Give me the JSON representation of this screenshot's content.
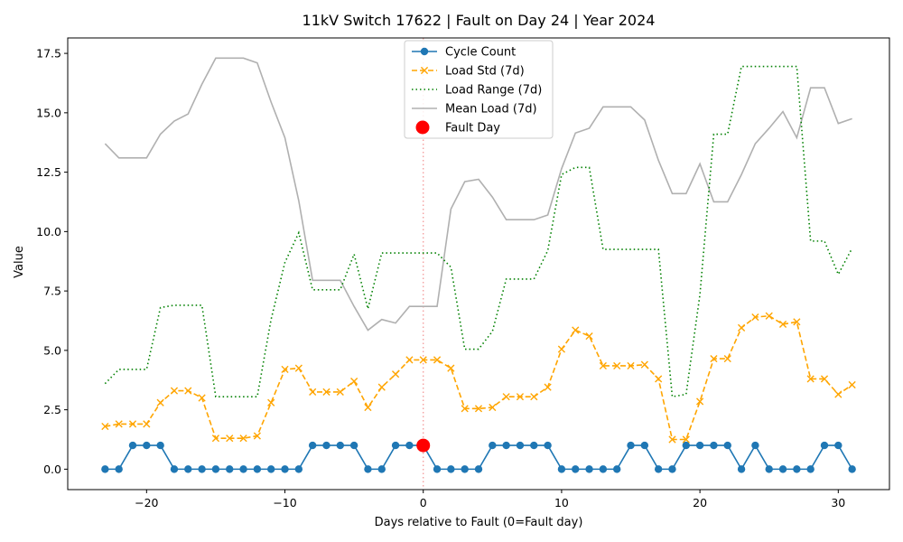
{
  "chart_data": {
    "type": "line",
    "title": "11kV Switch 17622 | Fault on Day 24 | Year 2024",
    "xlabel": "Days relative to Fault (0=Fault day)",
    "ylabel": "Value",
    "xlim": [
      -25.7,
      33.7
    ],
    "ylim": [
      -0.86,
      18.15
    ],
    "xticks": [
      -20,
      -10,
      0,
      10,
      20,
      30
    ],
    "xtick_labels": [
      "−20",
      "−10",
      "0",
      "10",
      "20",
      "30"
    ],
    "yticks": [
      0,
      2.5,
      5,
      7.5,
      10,
      12.5,
      15,
      17.5
    ],
    "ytick_labels": [
      "0.0",
      "2.5",
      "5.0",
      "7.5",
      "10.0",
      "12.5",
      "15.0",
      "17.5"
    ],
    "grid": false,
    "legend_position": "upper-center",
    "x": [
      -23,
      -22,
      -21,
      -20,
      -19,
      -18,
      -17,
      -16,
      -15,
      -14,
      -13,
      -12,
      -11,
      -10,
      -9,
      -8,
      -7,
      -6,
      -5,
      -4,
      -3,
      -2,
      -1,
      0,
      1,
      2,
      3,
      4,
      5,
      6,
      7,
      8,
      9,
      10,
      11,
      12,
      13,
      14,
      15,
      16,
      17,
      18,
      19,
      20,
      21,
      22,
      23,
      24,
      25,
      26,
      27,
      28,
      29,
      30,
      31
    ],
    "series": [
      {
        "name": "Cycle Count",
        "color": "#1f77b4",
        "style": "solid",
        "marker": "circle",
        "values": [
          0,
          0,
          1,
          1,
          1,
          0,
          0,
          0,
          0,
          0,
          0,
          0,
          0,
          0,
          0,
          1,
          1,
          1,
          1,
          0,
          0,
          1,
          1,
          1,
          0,
          0,
          0,
          0,
          1,
          1,
          1,
          1,
          1,
          0,
          0,
          0,
          0,
          0,
          1,
          1,
          0,
          0,
          1,
          1,
          1,
          1,
          0,
          1,
          0,
          0,
          0,
          0,
          1,
          1,
          0
        ]
      },
      {
        "name": "Load Std (7d)",
        "color": "#ffa500",
        "style": "dashed",
        "marker": "x",
        "values": [
          1.8,
          1.9,
          1.9,
          1.9,
          2.8,
          3.3,
          3.3,
          3.0,
          1.3,
          1.3,
          1.3,
          1.4,
          2.8,
          4.2,
          4.25,
          3.25,
          3.25,
          3.25,
          3.7,
          2.6,
          3.45,
          4.0,
          4.6,
          4.6,
          4.6,
          4.25,
          2.55,
          2.55,
          2.6,
          3.05,
          3.05,
          3.05,
          3.45,
          5.05,
          5.85,
          5.6,
          4.35,
          4.35,
          4.35,
          4.4,
          3.8,
          1.25,
          1.25,
          2.85,
          4.65,
          4.65,
          5.95,
          6.4,
          6.45,
          6.1,
          6.2,
          3.8,
          3.8,
          3.15,
          3.55
        ]
      },
      {
        "name": "Load Range (7d)",
        "color": "#008000",
        "style": "dotted",
        "marker": "none",
        "values": [
          3.6,
          4.2,
          4.2,
          4.2,
          6.8,
          6.9,
          6.9,
          6.9,
          3.05,
          3.05,
          3.05,
          3.05,
          6.3,
          8.7,
          9.95,
          7.55,
          7.55,
          7.55,
          9.05,
          6.75,
          9.1,
          9.1,
          9.1,
          9.1,
          9.1,
          8.5,
          5.05,
          5.05,
          5.8,
          8.0,
          8.0,
          8.0,
          9.2,
          12.4,
          12.7,
          12.7,
          9.25,
          9.25,
          9.25,
          9.25,
          9.25,
          3.05,
          3.15,
          7.35,
          14.1,
          14.1,
          16.95,
          16.95,
          16.95,
          16.95,
          16.95,
          9.6,
          9.6,
          8.2,
          9.3
        ]
      },
      {
        "name": "Mean Load (7d)",
        "color": "#b0b0b0",
        "style": "solid",
        "marker": "none",
        "values": [
          13.7,
          13.1,
          13.1,
          13.1,
          14.1,
          14.65,
          14.95,
          16.2,
          17.3,
          17.3,
          17.3,
          17.1,
          15.45,
          13.95,
          11.3,
          7.95,
          7.95,
          7.95,
          6.85,
          5.85,
          6.3,
          6.15,
          6.85,
          6.85,
          6.85,
          10.95,
          12.1,
          12.2,
          11.45,
          10.5,
          10.5,
          10.5,
          10.7,
          12.65,
          14.15,
          14.35,
          15.25,
          15.25,
          15.25,
          14.7,
          13.0,
          11.6,
          11.6,
          12.85,
          11.25,
          11.25,
          12.4,
          13.7,
          14.35,
          15.05,
          13.95,
          16.05,
          16.05,
          14.55,
          14.75
        ]
      }
    ],
    "fault_point": {
      "name": "Fault Day",
      "x": 0,
      "y": 1,
      "color": "#ff0000"
    },
    "fault_line": {
      "x": 0,
      "color": "#f08080",
      "style": "dotted"
    }
  }
}
